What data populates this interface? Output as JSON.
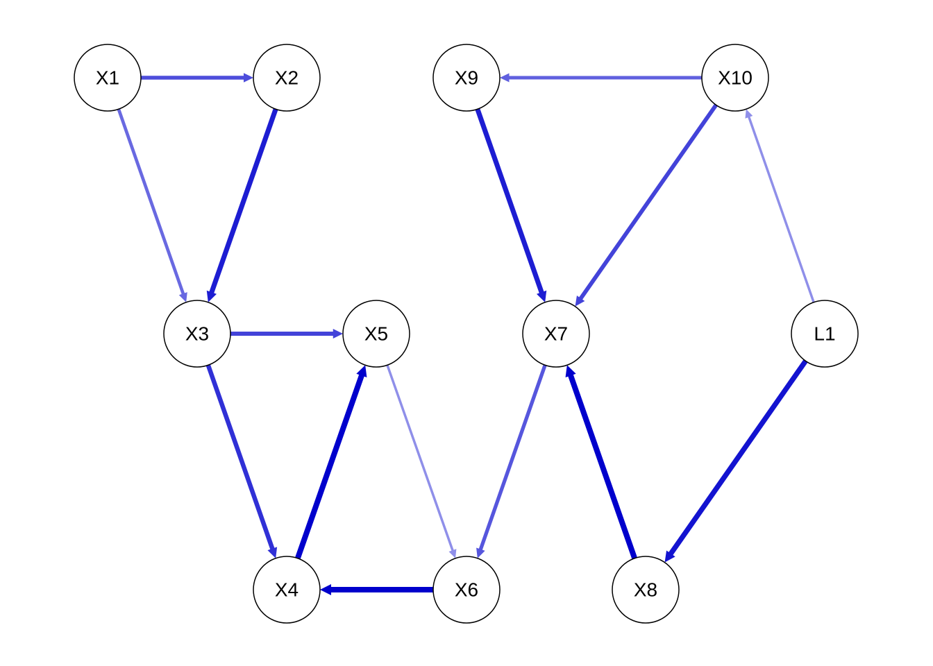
{
  "diagram": {
    "type": "directed-graph",
    "node_fill": "#ffffff",
    "node_stroke": "#000000",
    "edge_color": "#0000cc",
    "nodes": [
      {
        "id": "X1",
        "label": "X1"
      },
      {
        "id": "X2",
        "label": "X2"
      },
      {
        "id": "X3",
        "label": "X3"
      },
      {
        "id": "X4",
        "label": "X4"
      },
      {
        "id": "X5",
        "label": "X5"
      },
      {
        "id": "X6",
        "label": "X6"
      },
      {
        "id": "X7",
        "label": "X7"
      },
      {
        "id": "X8",
        "label": "X8"
      },
      {
        "id": "X9",
        "label": "X9"
      },
      {
        "id": "X10",
        "label": "X10"
      },
      {
        "id": "L1",
        "label": "L1"
      }
    ],
    "edges": [
      {
        "from": "X1",
        "to": "X2",
        "strength": 0.6
      },
      {
        "from": "X1",
        "to": "X3",
        "strength": 0.45
      },
      {
        "from": "X2",
        "to": "X3",
        "strength": 0.85
      },
      {
        "from": "X3",
        "to": "X5",
        "strength": 0.65
      },
      {
        "from": "X3",
        "to": "X4",
        "strength": 0.75
      },
      {
        "from": "X4",
        "to": "X5",
        "strength": 1.0
      },
      {
        "from": "X5",
        "to": "X6",
        "strength": 0.25
      },
      {
        "from": "X6",
        "to": "X4",
        "strength": 1.0
      },
      {
        "from": "X7",
        "to": "X6",
        "strength": 0.55
      },
      {
        "from": "X9",
        "to": "X7",
        "strength": 0.85
      },
      {
        "from": "X10",
        "to": "X9",
        "strength": 0.5
      },
      {
        "from": "X10",
        "to": "X7",
        "strength": 0.65
      },
      {
        "from": "X8",
        "to": "X7",
        "strength": 1.0
      },
      {
        "from": "L1",
        "to": "X10",
        "strength": 0.25
      },
      {
        "from": "L1",
        "to": "X8",
        "strength": 0.9
      }
    ]
  }
}
